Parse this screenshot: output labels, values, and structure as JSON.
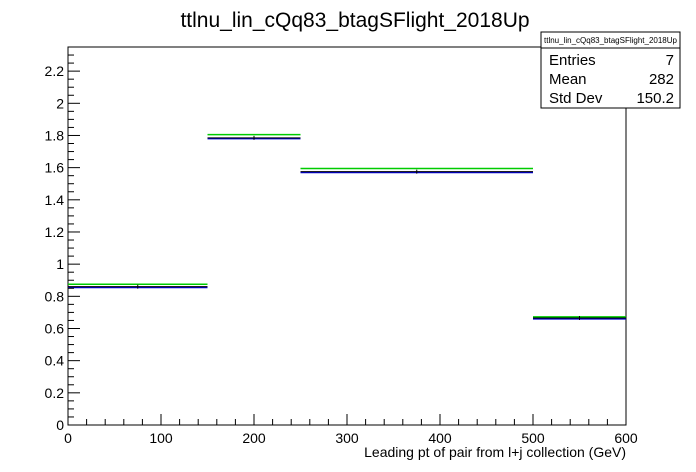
{
  "chart_data": {
    "type": "histogram",
    "title": "ttlnu_lin_cQq83_btagSFlight_2018Up",
    "xlabel": "Leading pt of pair from l+j collection (GeV)",
    "ylabel": "",
    "xlim": [
      0,
      600
    ],
    "ylim": [
      0,
      2.35
    ],
    "x_ticks": [
      "0",
      "100",
      "200",
      "300",
      "400",
      "500",
      "600"
    ],
    "y_ticks": [
      "0",
      "0.2",
      "0.4",
      "0.6",
      "0.8",
      "1",
      "1.2",
      "1.4",
      "1.6",
      "1.8",
      "2",
      "2.2"
    ],
    "bins": [
      {
        "x_low": 0,
        "x_high": 150,
        "nominal": 0.86,
        "blue": 0.855,
        "green": 0.875
      },
      {
        "x_low": 150,
        "x_high": 250,
        "nominal": 1.785,
        "blue": 1.78,
        "green": 1.805
      },
      {
        "x_low": 250,
        "x_high": 500,
        "nominal": 1.575,
        "blue": 1.57,
        "green": 1.595
      },
      {
        "x_low": 500,
        "x_high": 600,
        "nominal": 0.665,
        "blue": 0.66,
        "green": 0.672
      }
    ],
    "colors": {
      "nominal": "#000000",
      "blue": "#0000cc",
      "green": "#00cc00"
    },
    "grid": false,
    "legend": {
      "placement": "top-right",
      "title": "ttlnu_lin_cQq83_btagSFlight_2018Up",
      "entries_label": "Entries",
      "entries_value": "7",
      "mean_label": "Mean",
      "mean_value": "282",
      "stddev_label": "Std Dev",
      "stddev_value": "150.2"
    }
  }
}
